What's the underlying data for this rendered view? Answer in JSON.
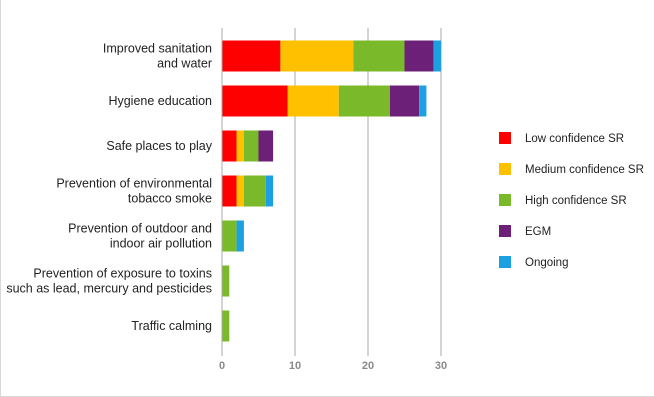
{
  "chart_data": {
    "type": "bar",
    "orientation": "horizontal",
    "stacked": true,
    "categories": [
      [
        "Improved sanitation",
        "and water"
      ],
      [
        "Hygiene education"
      ],
      [
        "Safe places to play"
      ],
      [
        "Prevention of environmental",
        "tobacco smoke"
      ],
      [
        "Prevention of outdoor and",
        "indoor air pollution"
      ],
      [
        "Prevention of exposure to toxins",
        "such as lead, mercury and pesticides"
      ],
      [
        "Traffic calming"
      ]
    ],
    "series": [
      {
        "name": "Low confidence SR",
        "color": "#ff0000",
        "values": [
          8,
          9,
          2,
          2,
          0,
          0,
          0
        ]
      },
      {
        "name": "Medium confidence SR",
        "color": "#ffc000",
        "values": [
          10,
          7,
          1,
          1,
          0,
          0,
          0
        ]
      },
      {
        "name": "High confidence SR",
        "color": "#7ab929",
        "values": [
          7,
          7,
          2,
          3,
          2,
          1,
          1
        ]
      },
      {
        "name": "EGM",
        "color": "#6d2077",
        "values": [
          4,
          4,
          2,
          0,
          0,
          0,
          0
        ]
      },
      {
        "name": "Ongoing",
        "color": "#1ba1e2",
        "values": [
          1,
          1,
          0,
          1,
          1,
          0,
          0
        ]
      }
    ],
    "x_ticks": [
      0,
      10,
      20,
      30
    ],
    "xlim": [
      0,
      30
    ],
    "grid": true,
    "legend_position": "right",
    "title": "",
    "xlabel": "",
    "ylabel": ""
  }
}
